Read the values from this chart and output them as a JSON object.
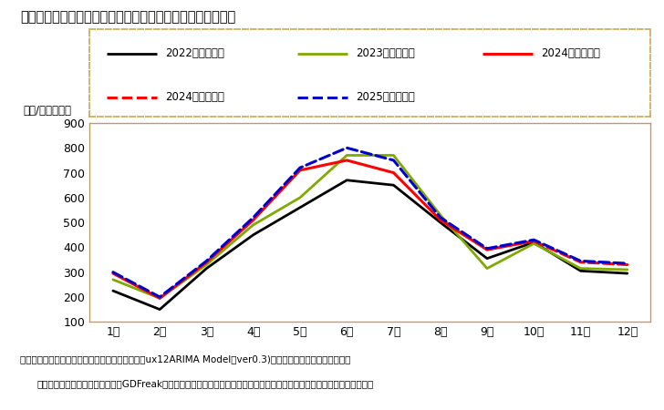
{
  "title": "「二人以上世帯」の１世帯当たり消費支出額の１２ケ月予測",
  "ylabel": "（円/月・世帯）",
  "xlabel_labels": [
    "1月",
    "2月",
    "3月",
    "4月",
    "5月",
    "6月",
    "7月",
    "8月",
    "9月",
    "10月",
    "11月",
    "12月"
  ],
  "ylim": [
    100,
    900
  ],
  "yticks": [
    100,
    200,
    300,
    400,
    500,
    600,
    700,
    800,
    900
  ],
  "footnote1": "出所：家計調査（二人以上世帯）（総務省）を基ux12ARIMA Model（ver0.3)により各月の曜日構成、月末稼",
  "footnote2": "日、うるう年の違いを織り込んでGDFreak予測。なお、東日本大震災後の影響については、モデルにダミー変数を立て対応。",
  "series": {
    "2022年（実績）": {
      "color": "#000000",
      "linestyle": "solid",
      "linewidth": 2.0,
      "values": [
        225,
        150,
        315,
        450,
        560,
        670,
        650,
        500,
        355,
        420,
        305,
        295
      ]
    },
    "2023年（実績）": {
      "color": "#7faa00",
      "linestyle": "solid",
      "linewidth": 2.0,
      "values": [
        270,
        195,
        330,
        490,
        600,
        770,
        770,
        530,
        315,
        415,
        315,
        310
      ]
    },
    "2024年（実績）": {
      "color": "#ff0000",
      "linestyle": "solid",
      "linewidth": 2.2,
      "values": [
        295,
        195,
        340,
        510,
        710,
        750,
        700,
        510,
        390,
        425,
        null,
        null
      ]
    },
    "2024年（予測）": {
      "color": "#ff0000",
      "linestyle": "dashed",
      "linewidth": 2.2,
      "values": [
        null,
        null,
        null,
        null,
        null,
        null,
        null,
        null,
        null,
        425,
        340,
        330
      ]
    },
    "2025年（予測）": {
      "color": "#0000cc",
      "linestyle": "dashed",
      "linewidth": 2.2,
      "values": [
        300,
        200,
        345,
        520,
        720,
        800,
        750,
        520,
        395,
        430,
        345,
        335
      ]
    }
  },
  "legend_order": [
    "2022年（実績）",
    "2023年（実績）",
    "2024年（実績）",
    "2024年（予測）",
    "2025年（予測）"
  ],
  "background_color": "#ffffff",
  "plot_bg_color": "#ffffff",
  "border_color": "#c8aa50",
  "legend_border_color": "#c8aa50"
}
